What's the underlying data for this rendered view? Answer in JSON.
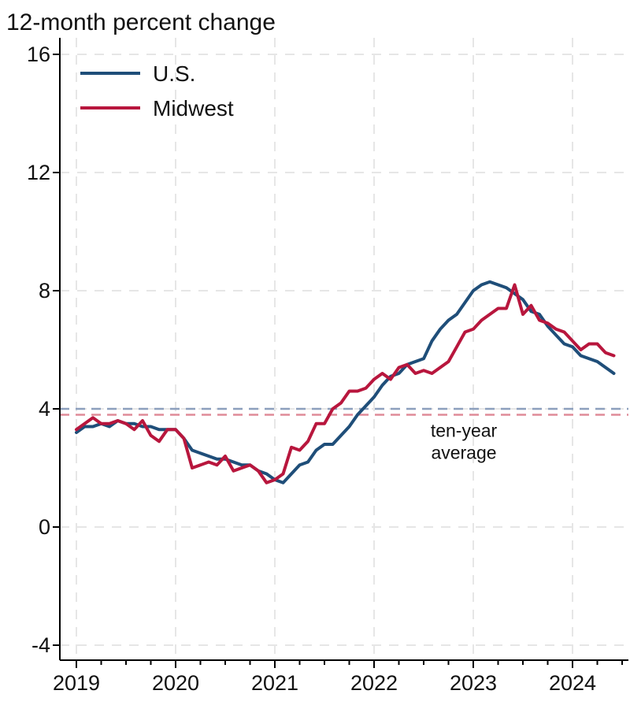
{
  "chart_data": {
    "type": "line",
    "title": "12-month percent change",
    "xlabel": "",
    "ylabel": "",
    "ylim": [
      -4,
      16
    ],
    "xlim": [
      2019,
      2024.6
    ],
    "yticks": [
      -4,
      0,
      4,
      8,
      12,
      16
    ],
    "ytick_labels": [
      "-4",
      "0",
      "4",
      "8",
      "12",
      "16"
    ],
    "xticks": [
      2019,
      2020,
      2021,
      2022,
      2023,
      2024
    ],
    "xtick_labels": [
      "2019",
      "2020",
      "2021",
      "2022",
      "2023",
      "2024"
    ],
    "grid": true,
    "legend_position": "top-left",
    "series": [
      {
        "name": "U.S.",
        "color": "#1f4e79",
        "x": [
          2019.0,
          2019.0833,
          2019.1667,
          2019.25,
          2019.3333,
          2019.4167,
          2019.5,
          2019.5833,
          2019.6667,
          2019.75,
          2019.8333,
          2019.9167,
          2020.0,
          2020.0833,
          2020.1667,
          2020.25,
          2020.3333,
          2020.4167,
          2020.5,
          2020.5833,
          2020.6667,
          2020.75,
          2020.8333,
          2020.9167,
          2021.0,
          2021.0833,
          2021.1667,
          2021.25,
          2021.3333,
          2021.4167,
          2021.5,
          2021.5833,
          2021.6667,
          2021.75,
          2021.8333,
          2021.9167,
          2022.0,
          2022.0833,
          2022.1667,
          2022.25,
          2022.3333,
          2022.4167,
          2022.5,
          2022.5833,
          2022.6667,
          2022.75,
          2022.8333,
          2022.9167,
          2023.0,
          2023.0833,
          2023.1667,
          2023.25,
          2023.3333,
          2023.4167,
          2023.5,
          2023.5833,
          2023.6667,
          2023.75,
          2023.8333,
          2023.9167,
          2024.0,
          2024.0833,
          2024.1667,
          2024.25,
          2024.3333,
          2024.4167
        ],
        "values": [
          3.2,
          3.4,
          3.4,
          3.5,
          3.4,
          3.6,
          3.5,
          3.5,
          3.4,
          3.4,
          3.3,
          3.3,
          3.3,
          3.0,
          2.6,
          2.5,
          2.4,
          2.3,
          2.3,
          2.2,
          2.1,
          2.1,
          1.9,
          1.8,
          1.6,
          1.5,
          1.8,
          2.1,
          2.2,
          2.6,
          2.8,
          2.8,
          3.1,
          3.4,
          3.8,
          4.1,
          4.4,
          4.8,
          5.1,
          5.2,
          5.5,
          5.6,
          5.7,
          6.3,
          6.7,
          7.0,
          7.2,
          7.6,
          8.0,
          8.2,
          8.3,
          8.2,
          8.1,
          7.9,
          7.7,
          7.3,
          7.2,
          6.8,
          6.5,
          6.2,
          6.1,
          5.8,
          5.7,
          5.6,
          5.4,
          5.2
        ]
      },
      {
        "name": "Midwest",
        "color": "#b8163d",
        "x": [
          2019.0,
          2019.0833,
          2019.1667,
          2019.25,
          2019.3333,
          2019.4167,
          2019.5,
          2019.5833,
          2019.6667,
          2019.75,
          2019.8333,
          2019.9167,
          2020.0,
          2020.0833,
          2020.1667,
          2020.25,
          2020.3333,
          2020.4167,
          2020.5,
          2020.5833,
          2020.6667,
          2020.75,
          2020.8333,
          2020.9167,
          2021.0,
          2021.0833,
          2021.1667,
          2021.25,
          2021.3333,
          2021.4167,
          2021.5,
          2021.5833,
          2021.6667,
          2021.75,
          2021.8333,
          2021.9167,
          2022.0,
          2022.0833,
          2022.1667,
          2022.25,
          2022.3333,
          2022.4167,
          2022.5,
          2022.5833,
          2022.6667,
          2022.75,
          2022.8333,
          2022.9167,
          2023.0,
          2023.0833,
          2023.1667,
          2023.25,
          2023.3333,
          2023.4167,
          2023.5,
          2023.5833,
          2023.6667,
          2023.75,
          2023.8333,
          2023.9167,
          2024.0,
          2024.0833,
          2024.1667,
          2024.25,
          2024.3333,
          2024.4167
        ],
        "values": [
          3.3,
          3.5,
          3.7,
          3.5,
          3.5,
          3.6,
          3.5,
          3.3,
          3.6,
          3.1,
          2.9,
          3.3,
          3.3,
          3.0,
          2.0,
          2.1,
          2.2,
          2.1,
          2.4,
          1.9,
          2.0,
          2.1,
          1.9,
          1.5,
          1.6,
          1.8,
          2.7,
          2.6,
          2.9,
          3.5,
          3.5,
          4.0,
          4.2,
          4.6,
          4.6,
          4.7,
          5.0,
          5.2,
          5.0,
          5.4,
          5.5,
          5.2,
          5.3,
          5.2,
          5.4,
          5.6,
          6.1,
          6.6,
          6.7,
          7.0,
          7.2,
          7.4,
          7.4,
          8.2,
          7.2,
          7.5,
          7.0,
          6.9,
          6.7,
          6.6,
          6.3,
          6.0,
          6.2,
          6.2,
          5.9,
          5.8
        ]
      }
    ],
    "reference_lines": [
      {
        "name": "U.S. ten-year average",
        "value": 4.0,
        "color": "#8c9fbd",
        "style": "dashed"
      },
      {
        "name": "Midwest ten-year average",
        "value": 3.8,
        "color": "#df8c98",
        "style": "dashed"
      }
    ],
    "annotation": {
      "line1": "ten-year",
      "line2": "average",
      "x": 2023.0,
      "y": 2.9
    }
  }
}
